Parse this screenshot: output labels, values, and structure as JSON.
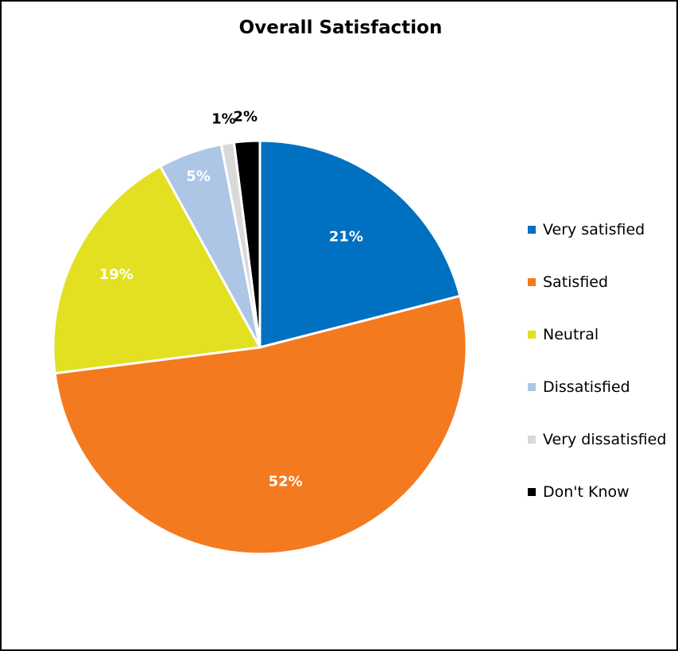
{
  "chart_data": {
    "type": "pie",
    "title": "Overall Satisfaction",
    "categories": [
      "Very satisfied",
      "Satisfied",
      "Neutral",
      "Dissatisfied",
      "Very dissatisfied",
      "Don't Know"
    ],
    "values": [
      21,
      52,
      19,
      5,
      1,
      2
    ],
    "data_labels": [
      "21%",
      "52%",
      "19%",
      "5%",
      "1%",
      "2%"
    ],
    "colors": [
      "#0070C0",
      "#F47A20",
      "#E2E021",
      "#ADC6E6",
      "#D9D9D9",
      "#000000"
    ],
    "label_colors": [
      "#ffffff",
      "#ffffff",
      "#ffffff",
      "#ffffff",
      "#000000",
      "#000000"
    ],
    "start_angle_deg": 0,
    "direction": "clockwise",
    "legend_position": "right"
  }
}
